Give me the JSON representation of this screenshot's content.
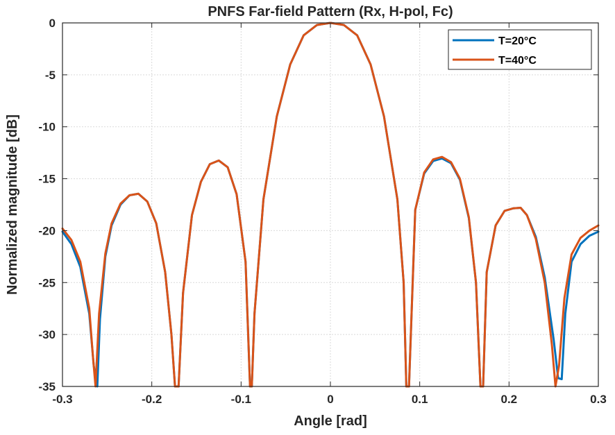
{
  "chart_data": {
    "type": "line",
    "title": "PNFS Far-field Pattern (Rx, H-pol, Fc)",
    "xlabel": "Angle [rad]",
    "ylabel": "Normalized magnitude [dB]",
    "xlim": [
      -0.3,
      0.3
    ],
    "ylim": [
      -35,
      0
    ],
    "xticks": [
      -0.3,
      -0.2,
      -0.1,
      0,
      0.1,
      0.2,
      0.3
    ],
    "xtick_labels": [
      "-0.3",
      "-0.2",
      "-0.1",
      "0",
      "0.1",
      "0.2",
      "0.3"
    ],
    "yticks": [
      0,
      -5,
      -10,
      -15,
      -20,
      -25,
      -30,
      -35
    ],
    "ytick_labels": [
      "0",
      "-5",
      "-10",
      "-15",
      "-20",
      "-25",
      "-30",
      "-35"
    ],
    "grid": true,
    "legend_position": "top-right",
    "series": [
      {
        "name": "T=20°C",
        "color": "#0072BD",
        "x": [
          -0.3,
          -0.29,
          -0.28,
          -0.27,
          -0.265,
          -0.261,
          -0.258,
          -0.252,
          -0.245,
          -0.235,
          -0.225,
          -0.215,
          -0.205,
          -0.195,
          -0.185,
          -0.178,
          -0.174,
          -0.17,
          -0.165,
          -0.155,
          -0.145,
          -0.135,
          -0.125,
          -0.115,
          -0.105,
          -0.095,
          -0.09,
          -0.088,
          -0.085,
          -0.075,
          -0.06,
          -0.045,
          -0.03,
          -0.015,
          0,
          0.015,
          0.03,
          0.045,
          0.06,
          0.075,
          0.082,
          0.085,
          0.088,
          0.095,
          0.105,
          0.115,
          0.125,
          0.135,
          0.145,
          0.155,
          0.163,
          0.168,
          0.171,
          0.175,
          0.185,
          0.195,
          0.205,
          0.213,
          0.22,
          0.23,
          0.24,
          0.25,
          0.255,
          0.259,
          0.263,
          0.27,
          0.28,
          0.29,
          0.3
        ],
        "y": [
          -20.1,
          -21.3,
          -23.5,
          -28,
          -33,
          -35,
          -28.5,
          -22.5,
          -19.5,
          -17.5,
          -16.6,
          -16.45,
          -17.2,
          -19.3,
          -24,
          -30,
          -35,
          -35,
          -26,
          -18.5,
          -15.3,
          -13.6,
          -13.25,
          -13.9,
          -16.5,
          -23,
          -35,
          -35,
          -28,
          -17,
          -9,
          -4,
          -1.2,
          -0.2,
          0,
          -0.2,
          -1.2,
          -4,
          -9,
          -17,
          -25,
          -35,
          -35,
          -18,
          -14.5,
          -13.3,
          -13.05,
          -13.5,
          -15.1,
          -18.8,
          -25,
          -35,
          -35,
          -24,
          -19.5,
          -18.1,
          -17.85,
          -17.8,
          -18.5,
          -20.6,
          -24.5,
          -30.5,
          -34.2,
          -34.3,
          -28,
          -23,
          -21.3,
          -20.5,
          -20.1
        ]
      },
      {
        "name": "T=40°C",
        "color": "#D95319",
        "x": [
          -0.3,
          -0.29,
          -0.28,
          -0.27,
          -0.266,
          -0.263,
          -0.259,
          -0.252,
          -0.245,
          -0.235,
          -0.225,
          -0.215,
          -0.205,
          -0.195,
          -0.185,
          -0.178,
          -0.174,
          -0.17,
          -0.165,
          -0.155,
          -0.145,
          -0.135,
          -0.125,
          -0.115,
          -0.105,
          -0.095,
          -0.09,
          -0.088,
          -0.085,
          -0.075,
          -0.06,
          -0.045,
          -0.03,
          -0.015,
          0,
          0.015,
          0.03,
          0.045,
          0.06,
          0.075,
          0.082,
          0.085,
          0.088,
          0.095,
          0.105,
          0.115,
          0.125,
          0.135,
          0.145,
          0.155,
          0.163,
          0.168,
          0.171,
          0.175,
          0.185,
          0.195,
          0.205,
          0.213,
          0.22,
          0.23,
          0.24,
          0.248,
          0.252,
          0.256,
          0.262,
          0.27,
          0.28,
          0.29,
          0.3
        ],
        "y": [
          -19.8,
          -20.9,
          -23,
          -27.5,
          -32,
          -35,
          -28,
          -22.2,
          -19.3,
          -17.4,
          -16.6,
          -16.45,
          -17.2,
          -19.3,
          -24,
          -30,
          -35,
          -35,
          -26,
          -18.5,
          -15.3,
          -13.6,
          -13.25,
          -13.9,
          -16.5,
          -23,
          -35,
          -35,
          -28,
          -17,
          -9,
          -4,
          -1.2,
          -0.2,
          0,
          -0.2,
          -1.2,
          -4,
          -9,
          -17,
          -25,
          -35,
          -35,
          -18,
          -14.4,
          -13.15,
          -12.9,
          -13.4,
          -15,
          -18.7,
          -25,
          -35,
          -35,
          -24,
          -19.5,
          -18.1,
          -17.85,
          -17.8,
          -18.5,
          -20.8,
          -25,
          -31,
          -35,
          -33,
          -26.5,
          -22.3,
          -20.7,
          -20,
          -19.5
        ]
      }
    ]
  }
}
